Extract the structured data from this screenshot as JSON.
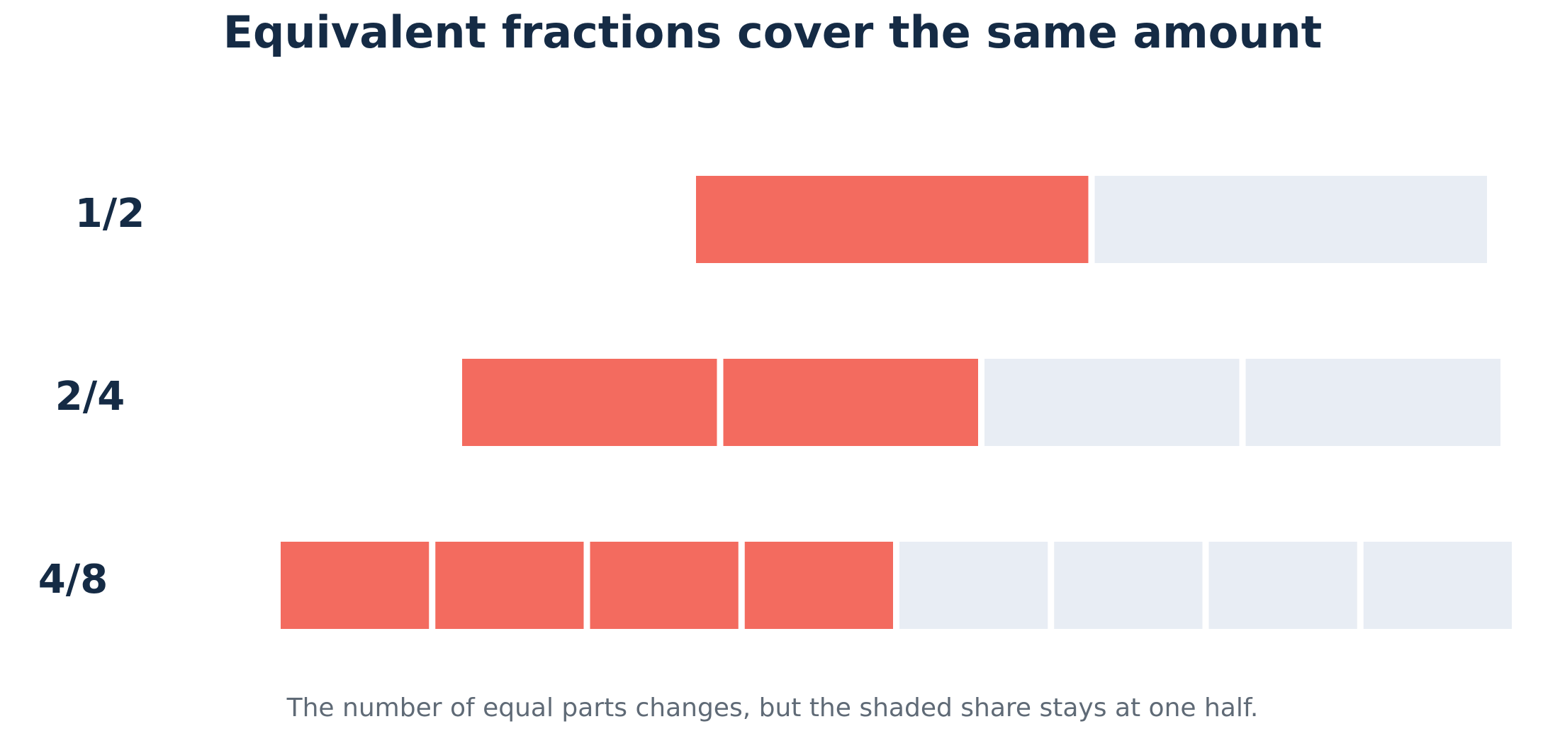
{
  "title": "Equivalent fractions cover the same amount",
  "caption": "The number of equal parts changes, but the shaded share stays at one half.",
  "colors": {
    "title": "#152b45",
    "shaded": "#f36b5f",
    "unshaded": "#e8edf4",
    "caption": "#5f6a76"
  },
  "rows": [
    {
      "label": "1/2",
      "parts": 2,
      "shaded": 1
    },
    {
      "label": "2/4",
      "parts": 4,
      "shaded": 2
    },
    {
      "label": "4/8",
      "parts": 8,
      "shaded": 4
    }
  ]
}
